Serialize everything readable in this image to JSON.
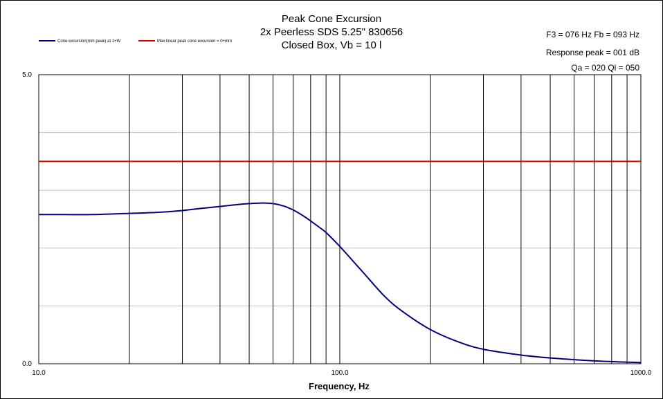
{
  "chart_data": {
    "type": "line",
    "title": [
      "Peak Cone Excursion",
      "2x Peerless  SDS 5.25\" 830656",
      "Closed Box, Vb = 10 l"
    ],
    "xlabel": "Frequency, Hz",
    "ylabel": "",
    "xscale": "log",
    "xlim": [
      10,
      1000
    ],
    "ylim": [
      0,
      5
    ],
    "x_tick_labels": [
      "10.0",
      "100.0",
      "1000.0"
    ],
    "y_tick_labels": [
      "5.0",
      "0.0"
    ],
    "grid": true,
    "legend_position": "top-left",
    "series": [
      {
        "name": "Cone excursion(mm peak) at 1+W",
        "color": "#000080",
        "x": [
          10,
          12,
          15,
          20,
          25,
          30,
          35,
          40,
          45,
          50,
          55,
          60,
          65,
          70,
          75,
          80,
          85,
          90,
          100,
          110,
          120,
          140,
          160,
          200,
          250,
          300,
          400,
          500,
          700,
          1000
        ],
        "y": [
          2.58,
          2.58,
          2.58,
          2.6,
          2.62,
          2.65,
          2.69,
          2.72,
          2.75,
          2.77,
          2.78,
          2.77,
          2.73,
          2.66,
          2.57,
          2.47,
          2.37,
          2.27,
          2.03,
          1.79,
          1.57,
          1.18,
          0.92,
          0.59,
          0.37,
          0.25,
          0.15,
          0.1,
          0.05,
          0.02
        ]
      },
      {
        "name": "Max linear peak cone excursion = 0+mm",
        "color": "#e00000",
        "x": [
          10,
          1000
        ],
        "y": [
          3.5,
          3.5
        ]
      }
    ]
  },
  "notes": [
    "F3 = 076  Hz   Fb = 093  Hz",
    "Response peak = 001  dB",
    "Qa = 020   Ql = 050"
  ]
}
